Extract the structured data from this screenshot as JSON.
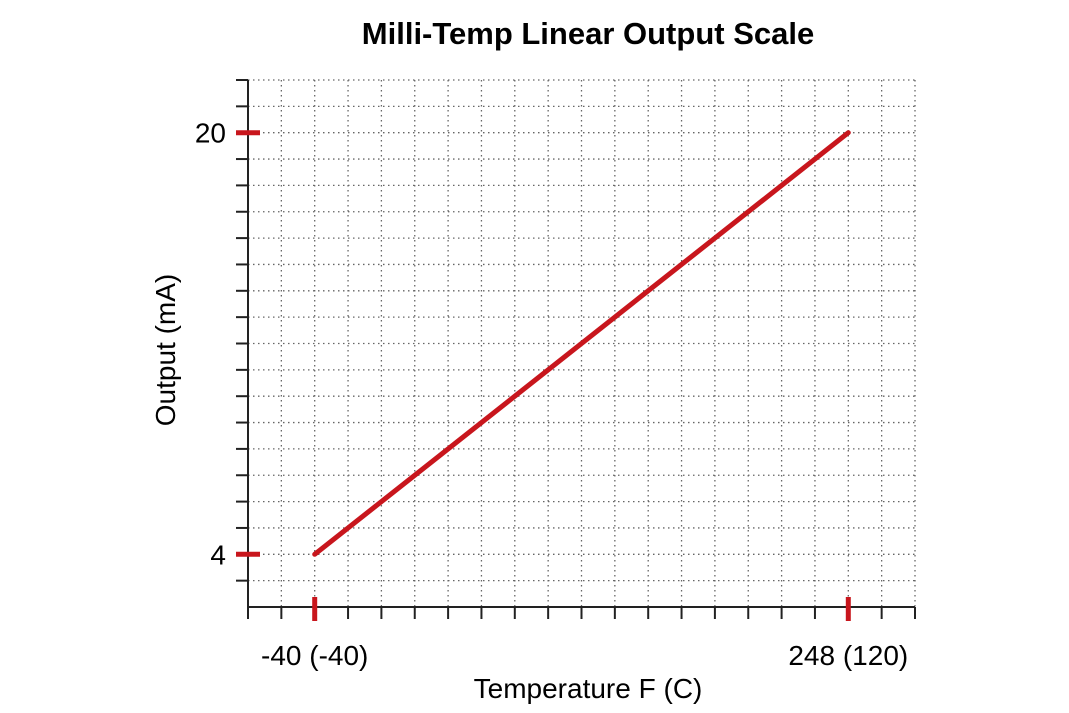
{
  "chart_data": {
    "type": "line",
    "title": "Milli-Temp Linear Output Scale",
    "xlabel": "Temperature F (C)",
    "ylabel": "Output (mA)",
    "xlim": [
      -76,
      284
    ],
    "ylim": [
      2,
      22
    ],
    "x_grid_step": 18,
    "y_grid_step": 1,
    "grid": true,
    "x_tick_labels": [
      {
        "value": -40,
        "label": "-40 (-40)"
      },
      {
        "value": 248,
        "label": "248 (120)"
      }
    ],
    "y_tick_labels": [
      {
        "value": 20,
        "label": "20"
      },
      {
        "value": 4,
        "label": "4"
      }
    ],
    "series": [
      {
        "name": "Output",
        "color": "#c8161d",
        "x": [
          -40,
          248
        ],
        "y": [
          4,
          20
        ]
      }
    ]
  }
}
